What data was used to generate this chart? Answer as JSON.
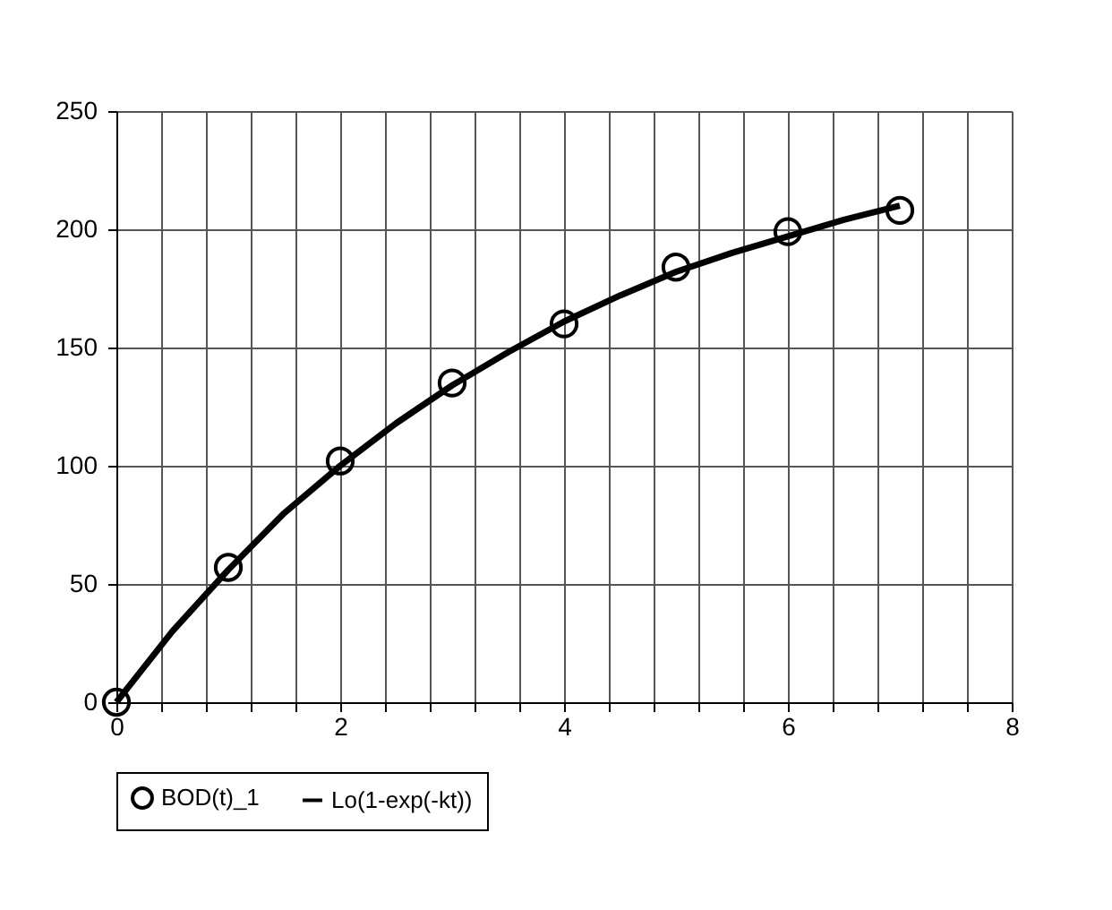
{
  "chart_data": {
    "type": "scatter",
    "xlim": [
      0,
      8
    ],
    "ylim": [
      0,
      250
    ],
    "xticks": [
      0,
      {
        "value": 0.4,
        "label": null
      },
      {
        "value": 0.8,
        "label": null
      },
      {
        "value": 1.2,
        "label": null
      },
      {
        "value": 1.6,
        "label": null
      },
      2,
      {
        "value": 2.4,
        "label": null
      },
      {
        "value": 2.8,
        "label": null
      },
      {
        "value": 3.2,
        "label": null
      },
      {
        "value": 3.6,
        "label": null
      },
      4,
      {
        "value": 4.4,
        "label": null
      },
      {
        "value": 4.8,
        "label": null
      },
      {
        "value": 5.2,
        "label": null
      },
      {
        "value": 5.6,
        "label": null
      },
      6,
      {
        "value": 6.4,
        "label": null
      },
      {
        "value": 6.8,
        "label": null
      },
      {
        "value": 7.2,
        "label": null
      },
      {
        "value": 7.6,
        "label": null
      },
      8
    ],
    "yticks": [
      0,
      50,
      100,
      150,
      200,
      250
    ],
    "grid": true,
    "legend": "bottom",
    "series": [
      {
        "name": "BOD(t)_1",
        "marker": "circle",
        "color": "#000000",
        "x": [
          0,
          1,
          2,
          3,
          4,
          5,
          6,
          7
        ],
        "values": [
          0,
          57,
          102,
          135,
          160,
          184,
          199,
          208
        ]
      },
      {
        "name": "Lo(1-exp(-kt))",
        "type": "line",
        "marker": "none",
        "line_style": "solid",
        "color": "#000000",
        "x": [
          0,
          0.5,
          1,
          1.5,
          2,
          2.5,
          3,
          3.5,
          4,
          4.5,
          5,
          5.5,
          6,
          6.5,
          7
        ],
        "values": [
          0,
          30,
          56,
          80,
          100,
          118,
          134,
          148,
          161,
          172,
          182,
          190,
          197,
          204,
          210
        ]
      }
    ]
  }
}
